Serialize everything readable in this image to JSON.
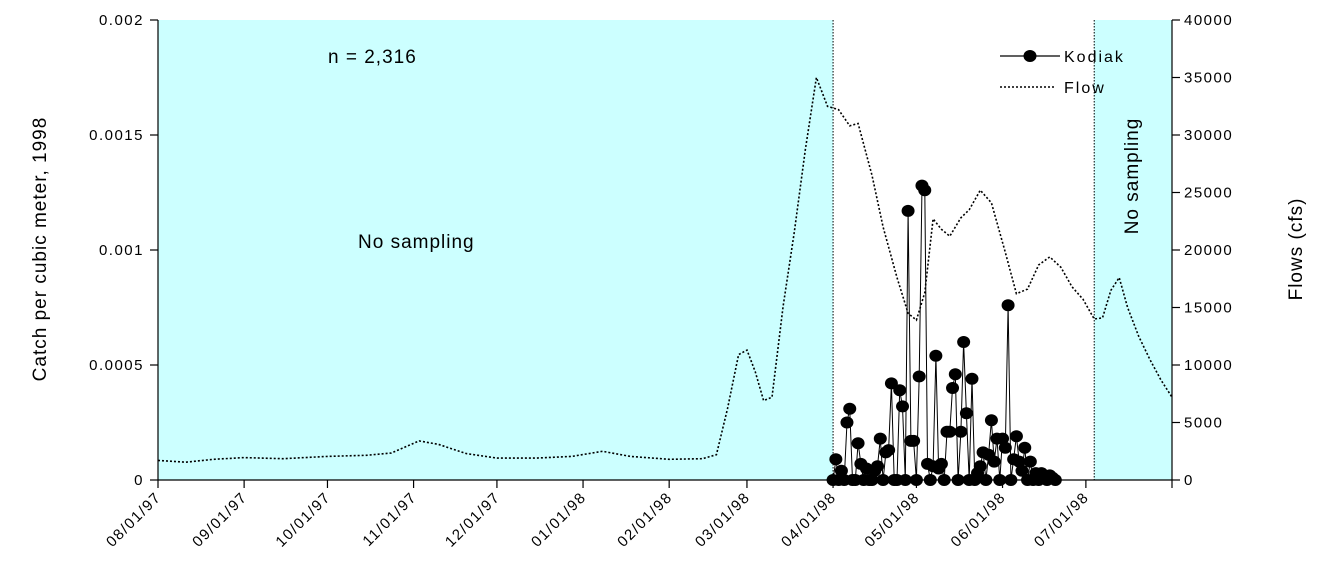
{
  "chart_data": {
    "type": "line",
    "x_axis": {
      "type": "date",
      "range": [
        "1997-08-01",
        "1998-08-01"
      ],
      "tick_labels": [
        "08/01/97",
        "09/01/97",
        "10/01/97",
        "11/01/97",
        "12/01/97",
        "01/01/98",
        "02/01/98",
        "03/01/98",
        "04/01/98",
        "05/01/98",
        "06/01/98",
        "07/01/98"
      ],
      "tick_dates": [
        "1997-08-01",
        "1997-09-01",
        "1997-10-01",
        "1997-11-01",
        "1997-12-01",
        "1998-01-01",
        "1998-02-01",
        "1998-03-01",
        "1998-04-01",
        "1998-05-01",
        "1998-06-01",
        "1998-07-01"
      ]
    },
    "y_left": {
      "label": "Catch per cubic meter, 1998",
      "range": [
        0,
        0.002
      ],
      "tick_labels": [
        "0",
        "0.0005",
        "0.001",
        "0.0015",
        "0.002"
      ],
      "tick_values": [
        0,
        0.0005,
        0.001,
        0.0015,
        0.002
      ]
    },
    "y_right": {
      "label": "Flows (cfs)",
      "range": [
        0,
        40000
      ],
      "tick_labels": [
        "0",
        "5000",
        "10000",
        "15000",
        "20000",
        "25000",
        "30000",
        "35000",
        "40000"
      ],
      "tick_values": [
        0,
        5000,
        10000,
        15000,
        20000,
        25000,
        30000,
        35000,
        40000
      ]
    },
    "grid": false,
    "legend_position": "top-right",
    "colors": {
      "no_sampling_fill": "#ccffff",
      "line": "#000000"
    },
    "annotations": {
      "n_label": "n = 2,316",
      "no_sampling_left": "No sampling",
      "no_sampling_right": "No sampling"
    },
    "shaded_regions": [
      {
        "start": "1997-08-01",
        "end": "1998-04-01"
      },
      {
        "start": "1998-07-04",
        "end": "1998-08-01"
      }
    ],
    "series": [
      {
        "name": "Kodiak",
        "axis": "left",
        "style": "line-markers",
        "points": [
          [
            "1998-04-01",
            0.0
          ],
          [
            "1998-04-02",
            9e-05
          ],
          [
            "1998-04-03",
            0.0
          ],
          [
            "1998-04-04",
            4e-05
          ],
          [
            "1998-04-05",
            0.0
          ],
          [
            "1998-04-06",
            0.00025
          ],
          [
            "1998-04-07",
            0.00031
          ],
          [
            "1998-04-08",
            0.0
          ],
          [
            "1998-04-09",
            0.0
          ],
          [
            "1998-04-10",
            0.00016
          ],
          [
            "1998-04-11",
            7e-05
          ],
          [
            "1998-04-12",
            0.0
          ],
          [
            "1998-04-13",
            5e-05
          ],
          [
            "1998-04-14",
            0.0
          ],
          [
            "1998-04-15",
            0.0
          ],
          [
            "1998-04-16",
            4e-05
          ],
          [
            "1998-04-17",
            6e-05
          ],
          [
            "1998-04-18",
            0.00018
          ],
          [
            "1998-04-19",
            0.0
          ],
          [
            "1998-04-20",
            0.00012
          ],
          [
            "1998-04-21",
            0.00013
          ],
          [
            "1998-04-22",
            0.00042
          ],
          [
            "1998-04-23",
            0.0
          ],
          [
            "1998-04-24",
            0.0
          ],
          [
            "1998-04-25",
            0.00039
          ],
          [
            "1998-04-26",
            0.00032
          ],
          [
            "1998-04-27",
            0.0
          ],
          [
            "1998-04-28",
            0.00117
          ],
          [
            "1998-04-29",
            0.00017
          ],
          [
            "1998-04-30",
            0.00017
          ],
          [
            "1998-05-01",
            0.0
          ],
          [
            "1998-05-02",
            0.00045
          ],
          [
            "1998-05-03",
            0.00128
          ],
          [
            "1998-05-04",
            0.00126
          ],
          [
            "1998-05-05",
            7e-05
          ],
          [
            "1998-05-06",
            0.0
          ],
          [
            "1998-05-07",
            6e-05
          ],
          [
            "1998-05-08",
            0.00054
          ],
          [
            "1998-05-09",
            5e-05
          ],
          [
            "1998-05-10",
            7e-05
          ],
          [
            "1998-05-11",
            0.0
          ],
          [
            "1998-05-12",
            0.00021
          ],
          [
            "1998-05-13",
            0.00021
          ],
          [
            "1998-05-14",
            0.0004
          ],
          [
            "1998-05-15",
            0.00046
          ],
          [
            "1998-05-16",
            0.0
          ],
          [
            "1998-05-17",
            0.00021
          ],
          [
            "1998-05-18",
            0.0006
          ],
          [
            "1998-05-19",
            0.00029
          ],
          [
            "1998-05-20",
            0.0
          ],
          [
            "1998-05-21",
            0.00044
          ],
          [
            "1998-05-22",
            0.0
          ],
          [
            "1998-05-23",
            3e-05
          ],
          [
            "1998-05-24",
            6e-05
          ],
          [
            "1998-05-25",
            0.00012
          ],
          [
            "1998-05-26",
            0.0
          ],
          [
            "1998-05-27",
            0.00011
          ],
          [
            "1998-05-28",
            0.00026
          ],
          [
            "1998-05-29",
            8e-05
          ],
          [
            "1998-05-30",
            0.00018
          ],
          [
            "1998-05-31",
            0.0
          ],
          [
            "1998-06-01",
            0.00018
          ],
          [
            "1998-06-02",
            0.00014
          ],
          [
            "1998-06-03",
            0.00076
          ],
          [
            "1998-06-04",
            0.0
          ],
          [
            "1998-06-05",
            9e-05
          ],
          [
            "1998-06-06",
            0.00019
          ],
          [
            "1998-06-07",
            8e-05
          ],
          [
            "1998-06-08",
            4e-05
          ],
          [
            "1998-06-09",
            0.00014
          ],
          [
            "1998-06-10",
            0.0
          ],
          [
            "1998-06-11",
            8e-05
          ],
          [
            "1998-06-12",
            0.0
          ],
          [
            "1998-06-13",
            3e-05
          ],
          [
            "1998-06-14",
            0.0
          ],
          [
            "1998-06-15",
            3e-05
          ],
          [
            "1998-06-16",
            2e-05
          ],
          [
            "1998-06-17",
            0.0
          ],
          [
            "1998-06-18",
            2e-05
          ],
          [
            "1998-06-19",
            1e-05
          ],
          [
            "1998-06-20",
            0.0
          ]
        ]
      },
      {
        "name": "Flow",
        "axis": "right",
        "style": "dotted-line",
        "points": [
          [
            "1997-08-01",
            1700
          ],
          [
            "1997-08-11",
            1550
          ],
          [
            "1997-08-21",
            1800
          ],
          [
            "1997-09-01",
            1950
          ],
          [
            "1997-09-15",
            1850
          ],
          [
            "1997-10-01",
            2050
          ],
          [
            "1997-10-15",
            2150
          ],
          [
            "1997-10-24",
            2350
          ],
          [
            "1997-11-03",
            3400
          ],
          [
            "1997-11-10",
            3100
          ],
          [
            "1997-11-20",
            2300
          ],
          [
            "1997-12-01",
            1900
          ],
          [
            "1997-12-15",
            1900
          ],
          [
            "1997-12-28",
            2050
          ],
          [
            "1998-01-08",
            2500
          ],
          [
            "1998-01-18",
            2050
          ],
          [
            "1998-02-01",
            1800
          ],
          [
            "1998-02-13",
            1850
          ],
          [
            "1998-02-18",
            2200
          ],
          [
            "1998-02-22",
            6200
          ],
          [
            "1998-02-26",
            10900
          ],
          [
            "1998-03-01",
            11300
          ],
          [
            "1998-03-04",
            9400
          ],
          [
            "1998-03-07",
            6900
          ],
          [
            "1998-03-10",
            7200
          ],
          [
            "1998-03-14",
            15100
          ],
          [
            "1998-03-18",
            21500
          ],
          [
            "1998-03-22",
            28700
          ],
          [
            "1998-03-26",
            35000
          ],
          [
            "1998-03-30",
            32500
          ],
          [
            "1998-04-03",
            32200
          ],
          [
            "1998-04-07",
            30800
          ],
          [
            "1998-04-10",
            31000
          ],
          [
            "1998-04-15",
            26500
          ],
          [
            "1998-04-19",
            22000
          ],
          [
            "1998-04-24",
            17600
          ],
          [
            "1998-04-28",
            14500
          ],
          [
            "1998-05-01",
            13900
          ],
          [
            "1998-05-04",
            16300
          ],
          [
            "1998-05-07",
            22700
          ],
          [
            "1998-05-10",
            21800
          ],
          [
            "1998-05-13",
            21200
          ],
          [
            "1998-05-17",
            22800
          ],
          [
            "1998-05-20",
            23500
          ],
          [
            "1998-05-24",
            25200
          ],
          [
            "1998-05-28",
            24100
          ],
          [
            "1998-06-02",
            19800
          ],
          [
            "1998-06-06",
            16200
          ],
          [
            "1998-06-10",
            16600
          ],
          [
            "1998-06-14",
            18700
          ],
          [
            "1998-06-18",
            19400
          ],
          [
            "1998-06-22",
            18500
          ],
          [
            "1998-06-26",
            16800
          ],
          [
            "1998-06-30",
            15700
          ],
          [
            "1998-07-04",
            14000
          ],
          [
            "1998-07-07",
            14100
          ],
          [
            "1998-07-10",
            16500
          ],
          [
            "1998-07-13",
            17600
          ],
          [
            "1998-07-16",
            15000
          ],
          [
            "1998-07-20",
            12500
          ],
          [
            "1998-07-24",
            10500
          ],
          [
            "1998-07-28",
            8700
          ],
          [
            "1998-08-01",
            7200
          ]
        ]
      }
    ]
  }
}
